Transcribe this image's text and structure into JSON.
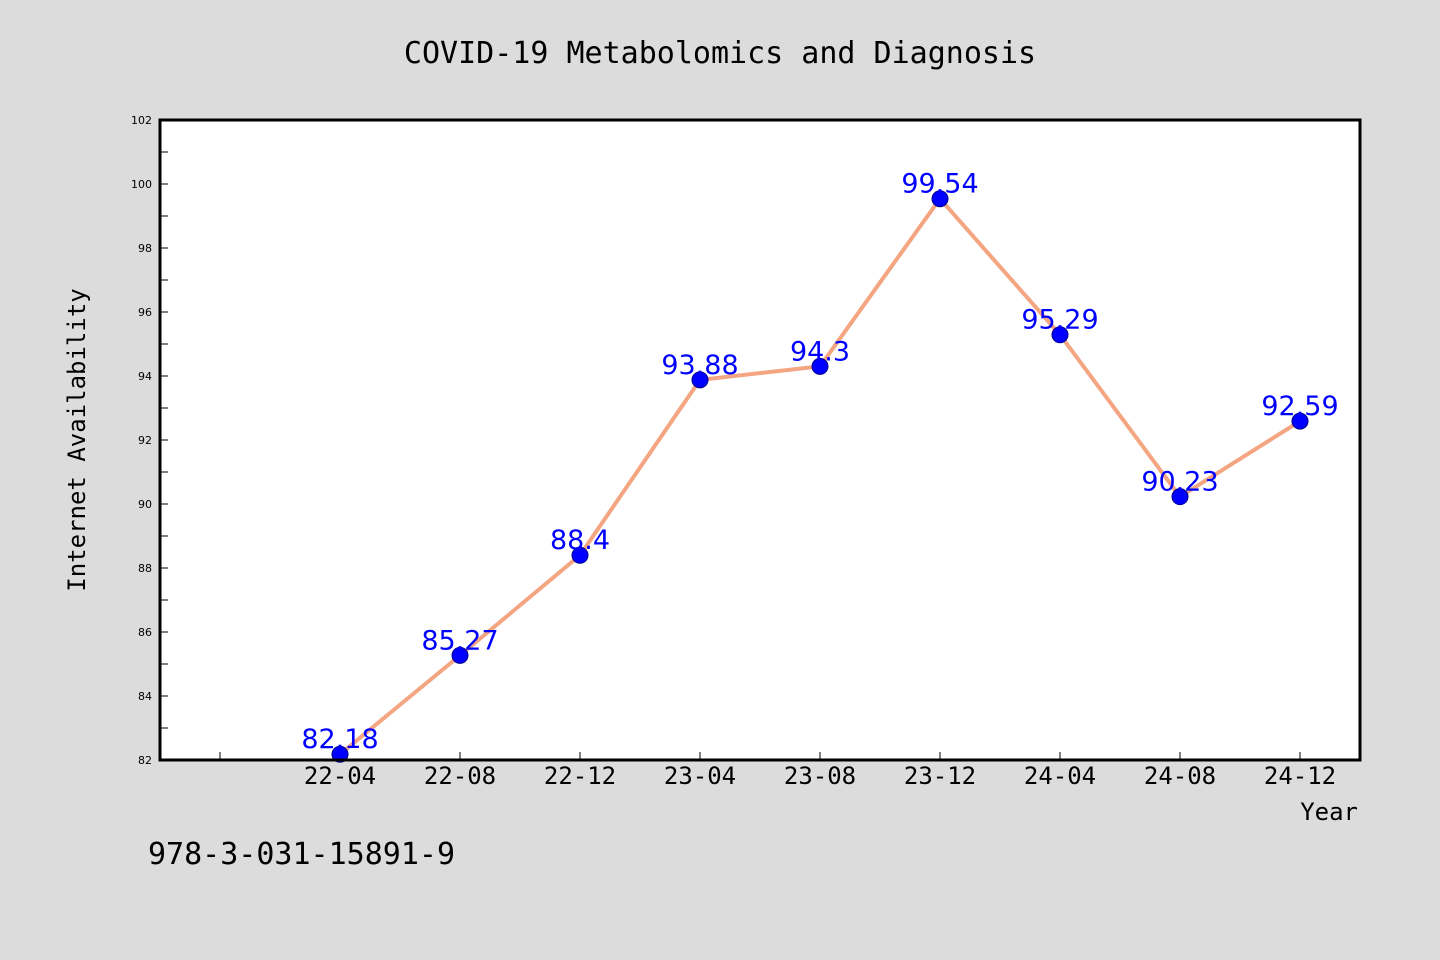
{
  "colors": {
    "background": "#dcdcdc",
    "plot_background": "#ffffff",
    "line": "#f4a582",
    "marker": "#0000ff",
    "data_label": "#0000ff"
  },
  "footnote": "978-3-031-15891-9",
  "chart_data": {
    "type": "line",
    "title": "COVID-19 Metabolomics and Diagnosis",
    "xlabel": "Year",
    "ylabel": "Internet Availability",
    "categories": [
      "22-04",
      "22-08",
      "22-12",
      "23-04",
      "23-08",
      "23-12",
      "24-04",
      "24-08",
      "24-12"
    ],
    "series": [
      {
        "values": [
          82.18,
          85.27,
          88.4,
          93.88,
          94.3,
          99.54,
          95.29,
          90.23,
          92.59
        ],
        "data_labels": [
          "82.18",
          "85.27",
          "88.4",
          "93.88",
          "94.3",
          "99.54",
          "95.29",
          "90.23",
          "92.59"
        ]
      }
    ],
    "ylim": [
      82,
      102
    ],
    "yticks": [
      82,
      84,
      86,
      88,
      90,
      92,
      94,
      96,
      98,
      100,
      102
    ],
    "ytick_labels": [
      "82",
      "84",
      "86",
      "88",
      "90",
      "92",
      "94",
      "96",
      "98",
      "100",
      "102"
    ],
    "grid": false,
    "legend": "none"
  }
}
